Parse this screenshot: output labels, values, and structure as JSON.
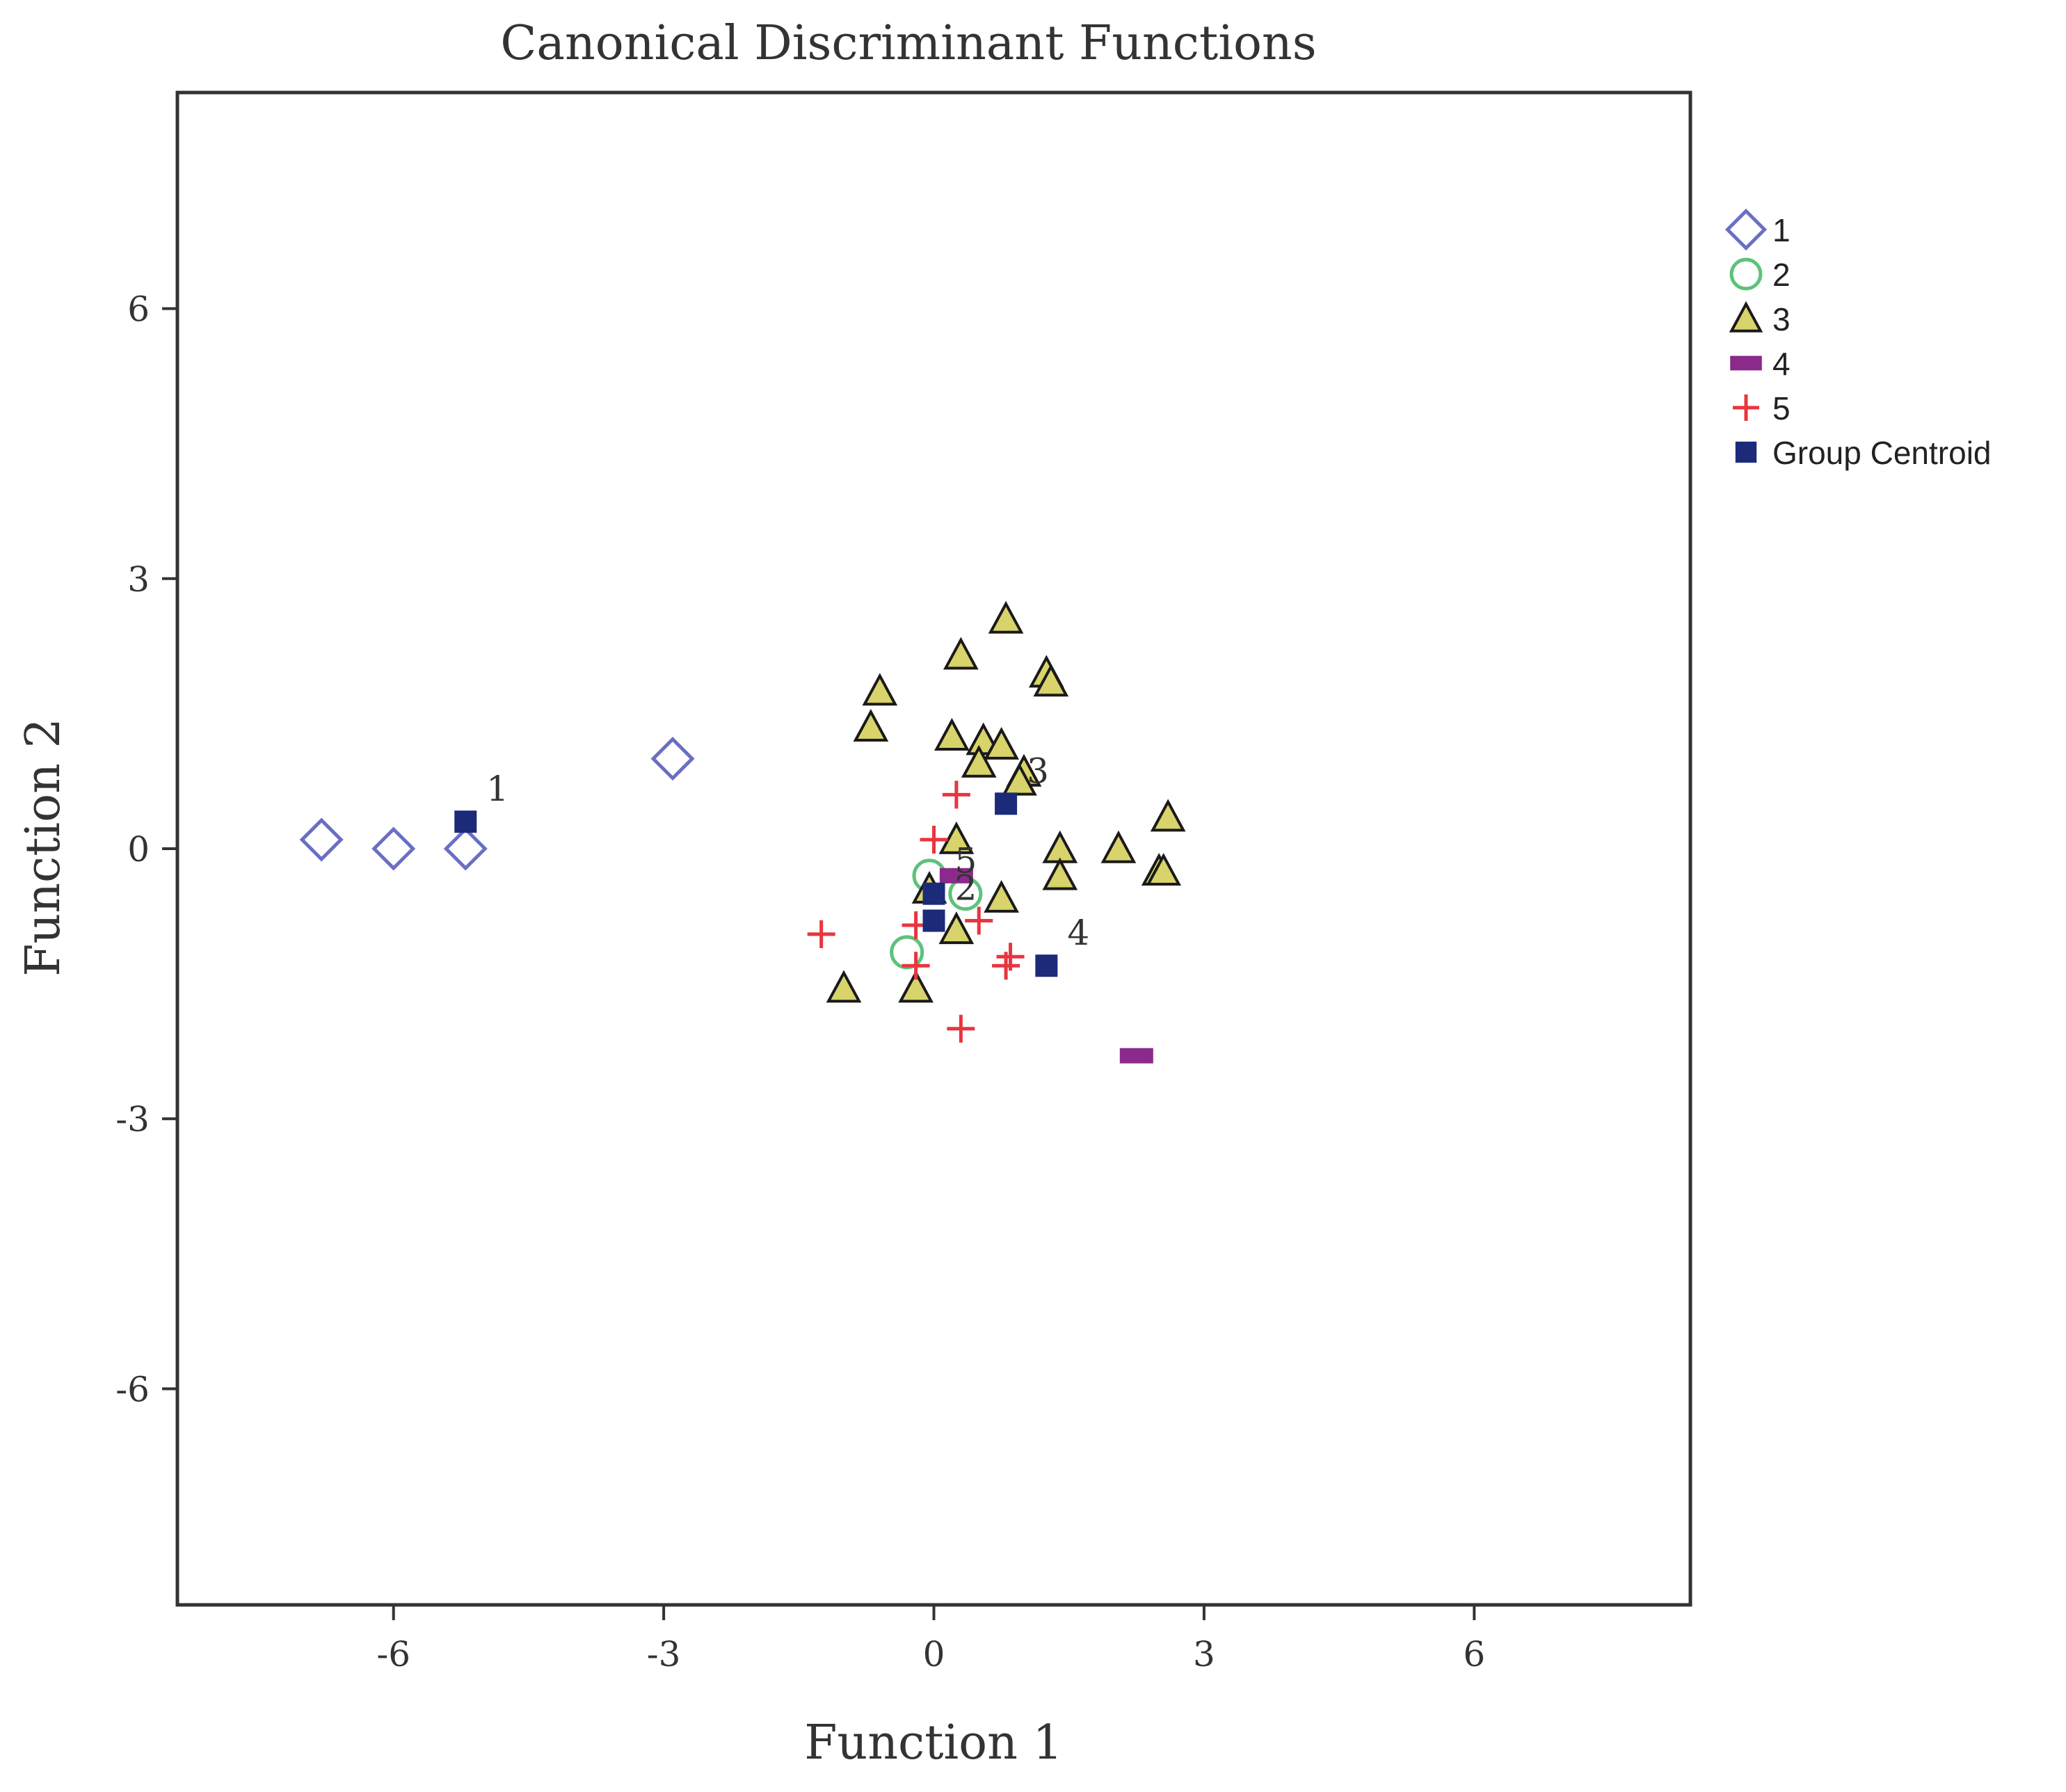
{
  "chart_data": {
    "type": "scatter",
    "title": "Canonical Discriminant Functions",
    "xlabel": "Function 1",
    "ylabel": "Function 2",
    "xlim": [
      -8.4,
      8.4
    ],
    "ylim": [
      -8.4,
      8.4
    ],
    "xticks": [
      -6,
      -3,
      0,
      3,
      6
    ],
    "yticks": [
      -6,
      -3,
      0,
      3,
      6
    ],
    "tick_labels_x": [
      "-6",
      "-3",
      "0",
      "3",
      "6"
    ],
    "tick_labels_y": [
      "-6",
      "-3",
      "0",
      "3",
      "6"
    ],
    "grid": false,
    "legend_position": "outside-right",
    "series": [
      {
        "name": "1",
        "marker": "diamond",
        "color": "#6a6fc4",
        "points": [
          [
            -6.8,
            0.1
          ],
          [
            -6.0,
            0.0
          ],
          [
            -5.2,
            0.0
          ],
          [
            -2.9,
            1.0
          ]
        ]
      },
      {
        "name": "2",
        "marker": "circle",
        "color": "#5cc27a",
        "points": [
          [
            -0.05,
            -0.3
          ],
          [
            -0.3,
            -1.15
          ],
          [
            0.35,
            -0.5
          ]
        ]
      },
      {
        "name": "3",
        "marker": "triangle",
        "color": "#d8d36a",
        "points": [
          [
            0.8,
            2.55
          ],
          [
            0.3,
            2.15
          ],
          [
            1.25,
            1.95
          ],
          [
            1.3,
            1.85
          ],
          [
            -0.6,
            1.75
          ],
          [
            -0.7,
            1.35
          ],
          [
            0.2,
            1.25
          ],
          [
            0.55,
            1.2
          ],
          [
            0.75,
            1.15
          ],
          [
            0.5,
            0.95
          ],
          [
            1.0,
            0.85
          ],
          [
            0.95,
            0.75
          ],
          [
            2.6,
            0.35
          ],
          [
            0.25,
            0.1
          ],
          [
            1.4,
            0.0
          ],
          [
            2.05,
            0.0
          ],
          [
            2.5,
            -0.25
          ],
          [
            2.55,
            -0.25
          ],
          [
            1.4,
            -0.3
          ],
          [
            0.75,
            -0.55
          ],
          [
            -0.05,
            -0.45
          ],
          [
            0.25,
            -0.9
          ],
          [
            -1.0,
            -1.55
          ],
          [
            -0.2,
            -1.55
          ]
        ]
      },
      {
        "name": "4",
        "marker": "bar",
        "color": "#8b2a8b",
        "points": [
          [
            0.25,
            -0.3
          ],
          [
            2.25,
            -2.3
          ]
        ]
      },
      {
        "name": "5",
        "marker": "plus",
        "color": "#e8353f",
        "points": [
          [
            0.25,
            0.6
          ],
          [
            0.0,
            0.1
          ],
          [
            -1.25,
            -0.95
          ],
          [
            -0.2,
            -0.85
          ],
          [
            0.5,
            -0.8
          ],
          [
            0.85,
            -1.2
          ],
          [
            0.8,
            -1.3
          ],
          [
            -0.2,
            -1.3
          ],
          [
            0.3,
            -2.0
          ]
        ]
      },
      {
        "name": "Group Centroid",
        "marker": "square",
        "color": "#1c2a7a",
        "points": [
          [
            -5.2,
            0.3
          ],
          [
            0.0,
            -0.8
          ],
          [
            0.8,
            0.5
          ],
          [
            1.25,
            -1.3
          ],
          [
            0.0,
            -0.5
          ]
        ],
        "labels": [
          "1",
          "2",
          "3",
          "4",
          "5"
        ]
      }
    ]
  }
}
